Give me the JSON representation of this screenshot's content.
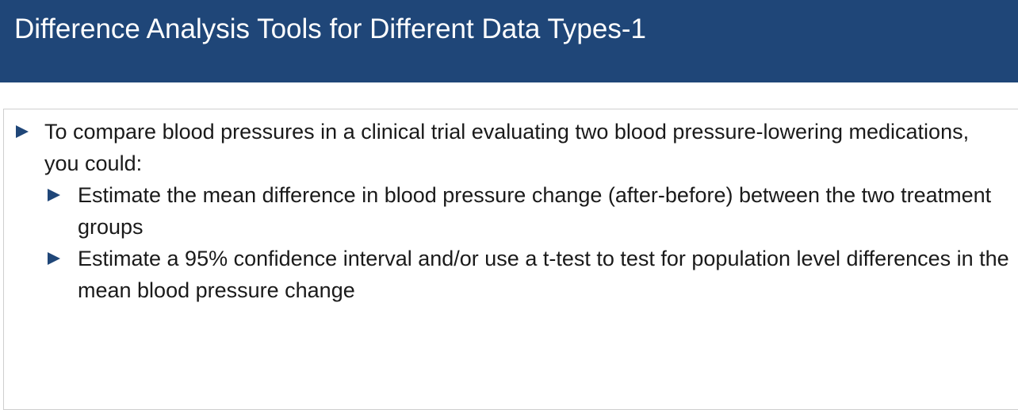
{
  "slide": {
    "title": "Difference Analysis Tools for Different Data Types-1",
    "colors": {
      "title_bar": "#1f4678",
      "bullet_arrow": "#1f4678",
      "title_text": "#ffffff",
      "body_text": "#1a1a1a"
    },
    "bullets": [
      {
        "level": 1,
        "icon": "triangle-right-icon",
        "text": "To compare blood pressures in a clinical trial evaluating two blood pressure-lowering medications, you could:"
      },
      {
        "level": 2,
        "icon": "triangle-right-icon",
        "text": "Estimate the mean difference in blood pressure change (after-before) between the two treatment groups"
      },
      {
        "level": 2,
        "icon": "triangle-right-icon",
        "text": "Estimate a 95% confidence interval and/or use a t-test to test for population level differences in the mean blood pressure change"
      }
    ]
  }
}
